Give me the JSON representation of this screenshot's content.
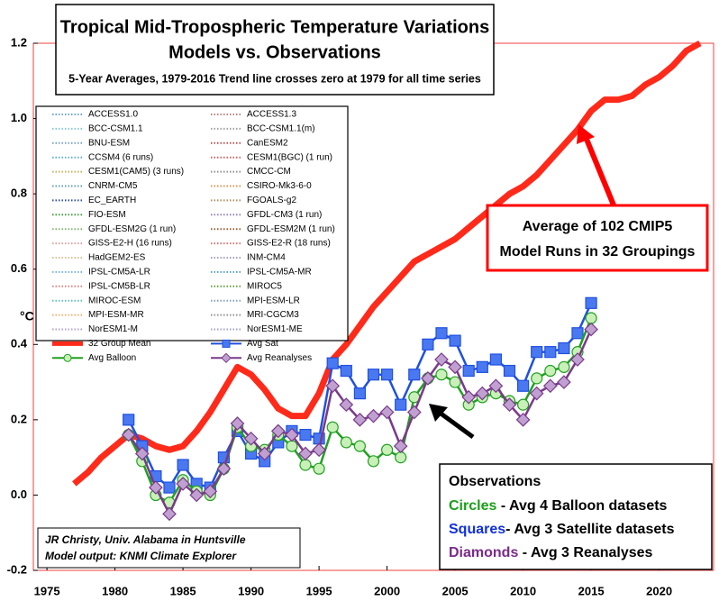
{
  "chart_data": {
    "type": "line",
    "title": [
      "Tropical Mid-Tropospheric Temperature Variations",
      "Models vs. Observations"
    ],
    "subtitle": "5-Year Averages, 1979-2016 Trend line crosses zero at 1979 for all time series",
    "ylabel": "°C",
    "xlim": [
      1974,
      2024
    ],
    "xticks": [
      1975,
      1980,
      1985,
      1990,
      1995,
      2000,
      2005,
      2010,
      2015,
      2020
    ],
    "ylim": [
      -0.2,
      1.2
    ],
    "yticks": [
      {
        "value": -0.2,
        "label": "-0.2"
      },
      {
        "value": 0,
        "label": "0.0"
      },
      {
        "value": 0.2,
        "label": "0.2"
      },
      {
        "value": 0.4,
        "label": "0.4"
      },
      {
        "value": 0.6,
        "label": "0.6"
      },
      {
        "value": 0.8,
        "label": "0.8"
      },
      {
        "value": 1.0,
        "label": "1.0"
      },
      {
        "value": 1.2,
        "label": "1.2"
      }
    ],
    "grid": false,
    "legend": "upper left",
    "legend_models": [
      {
        "name": "ACCESS1.0",
        "color": "#6fa0d8"
      },
      {
        "name": "BCC-CSM1.1",
        "color": "#8ac4e0"
      },
      {
        "name": "BNU-ESM",
        "color": "#7aa0c8"
      },
      {
        "name": "CCSM4 (6 runs)",
        "color": "#5ab0d0"
      },
      {
        "name": "CESM1(CAM5) (3 runs)",
        "color": "#c0b060"
      },
      {
        "name": "CNRM-CM5",
        "color": "#60a0b0"
      },
      {
        "name": "EC_EARTH",
        "color": "#3050a0"
      },
      {
        "name": "FIO-ESM",
        "color": "#40a040"
      },
      {
        "name": "GFDL-ESM2G (1 run)",
        "color": "#80b870"
      },
      {
        "name": "GISS-E2-H (16 runs)",
        "color": "#e0a0a0"
      },
      {
        "name": "HadGEM2-ES",
        "color": "#d8c090"
      },
      {
        "name": "IPSL-CM5A-LR",
        "color": "#70b0e0"
      },
      {
        "name": "IPSL-CM5B-LR",
        "color": "#e08080"
      },
      {
        "name": "MIROC-ESM",
        "color": "#60c0c0"
      },
      {
        "name": "MPI-ESM-MR",
        "color": "#f0b070"
      },
      {
        "name": "NorESM1-M",
        "color": "#b0a0d0"
      },
      {
        "name": "ACCESS1.3",
        "color": "#c08080"
      },
      {
        "name": "BCC-CSM1.1(m)",
        "color": "#a0a0a0"
      },
      {
        "name": "CanESM2",
        "color": "#c05050"
      },
      {
        "name": "CESM1(BGC) (1 run)",
        "color": "#d06060"
      },
      {
        "name": "CMCC-CM",
        "color": "#909090"
      },
      {
        "name": "CSIRO-Mk3-6-0",
        "color": "#e09050"
      },
      {
        "name": "FGOALS-g2",
        "color": "#b09060"
      },
      {
        "name": "GFDL-CM3 (1 run)",
        "color": "#9080c0"
      },
      {
        "name": "GFDL-ESM2M (1 run)",
        "color": "#a06030"
      },
      {
        "name": "GISS-E2-R (18 runs)",
        "color": "#e07070"
      },
      {
        "name": "INM-CM4",
        "color": "#a0a0c0"
      },
      {
        "name": "IPSL-CM5A-MR",
        "color": "#50a0d0"
      },
      {
        "name": "MIROC5",
        "color": "#60a040"
      },
      {
        "name": "MPI-ESM-LR",
        "color": "#80a0c0"
      },
      {
        "name": "MRI-CGCM3",
        "color": "#909090"
      },
      {
        "name": "NorESM1-ME",
        "color": "#a0a0d0"
      }
    ],
    "series": [
      {
        "name": "32 Group Mean",
        "color": "#ff2a1a",
        "marker": "none",
        "x": [
          1977,
          1978,
          1979,
          1980,
          1981,
          1982,
          1983,
          1984,
          1985,
          1986,
          1987,
          1988,
          1989,
          1990,
          1991,
          1992,
          1993,
          1994,
          1995,
          1996,
          1997,
          1998,
          1999,
          2000,
          2001,
          2002,
          2003,
          2004,
          2005,
          2006,
          2007,
          2008,
          2009,
          2010,
          2011,
          2012,
          2013,
          2014,
          2015,
          2016,
          2017,
          2018,
          2019,
          2020,
          2021,
          2022,
          2023
        ],
        "values": [
          0.03,
          0.06,
          0.1,
          0.13,
          0.16,
          0.15,
          0.13,
          0.12,
          0.13,
          0.17,
          0.22,
          0.28,
          0.34,
          0.32,
          0.28,
          0.23,
          0.21,
          0.21,
          0.27,
          0.36,
          0.4,
          0.45,
          0.5,
          0.54,
          0.58,
          0.62,
          0.64,
          0.66,
          0.68,
          0.71,
          0.74,
          0.77,
          0.8,
          0.82,
          0.85,
          0.89,
          0.93,
          0.97,
          1.02,
          1.05,
          1.05,
          1.06,
          1.09,
          1.11,
          1.14,
          1.18,
          1.2
        ]
      },
      {
        "name": "Avg Sat",
        "color": "#2050e0",
        "marker": "square",
        "x": [
          1981,
          1982,
          1983,
          1984,
          1985,
          1986,
          1987,
          1988,
          1989,
          1990,
          1991,
          1992,
          1993,
          1994,
          1995,
          1996,
          1997,
          1998,
          1999,
          2000,
          2001,
          2002,
          2003,
          2004,
          2005,
          2006,
          2007,
          2008,
          2009,
          2010,
          2011,
          2012,
          2013,
          2014,
          2015
        ],
        "values": [
          0.2,
          0.13,
          0.05,
          0.02,
          0.08,
          0.03,
          0.02,
          0.1,
          0.17,
          0.11,
          0.09,
          0.14,
          0.17,
          0.16,
          0.15,
          0.35,
          0.33,
          0.27,
          0.32,
          0.32,
          0.24,
          0.32,
          0.4,
          0.43,
          0.41,
          0.33,
          0.34,
          0.36,
          0.33,
          0.29,
          0.38,
          0.38,
          0.39,
          0.43,
          0.51
        ]
      },
      {
        "name": "Avg Balloon",
        "color": "#20a020",
        "marker": "circle",
        "x": [
          1981,
          1982,
          1983,
          1984,
          1985,
          1986,
          1987,
          1988,
          1989,
          1990,
          1991,
          1992,
          1993,
          1994,
          1995,
          1996,
          1997,
          1998,
          1999,
          2000,
          2001,
          2002,
          2003,
          2004,
          2005,
          2006,
          2007,
          2008,
          2009,
          2010,
          2011,
          2012,
          2013,
          2014,
          2015
        ],
        "values": [
          0.16,
          0.09,
          0.0,
          -0.02,
          0.04,
          0.01,
          0.0,
          0.07,
          0.18,
          0.13,
          0.12,
          0.16,
          0.13,
          0.08,
          0.07,
          0.18,
          0.14,
          0.13,
          0.09,
          0.12,
          0.1,
          0.26,
          0.31,
          0.32,
          0.3,
          0.24,
          0.26,
          0.27,
          0.25,
          0.24,
          0.31,
          0.33,
          0.34,
          0.38,
          0.47
        ]
      },
      {
        "name": "Avg Reanalyses",
        "color": "#7a3a8a",
        "marker": "diamond",
        "x": [
          1981,
          1982,
          1983,
          1984,
          1985,
          1986,
          1987,
          1988,
          1989,
          1990,
          1991,
          1992,
          1993,
          1994,
          1995,
          1996,
          1997,
          1998,
          1999,
          2000,
          2001,
          2002,
          2003,
          2004,
          2005,
          2006,
          2007,
          2008,
          2009,
          2010,
          2011,
          2012,
          2013,
          2014,
          2015
        ],
        "values": [
          0.16,
          0.11,
          0.02,
          -0.05,
          0.03,
          0.0,
          0.01,
          0.07,
          0.19,
          0.15,
          0.11,
          0.17,
          0.16,
          0.11,
          0.12,
          0.29,
          0.24,
          0.2,
          0.21,
          0.22,
          0.13,
          0.22,
          0.31,
          0.36,
          0.34,
          0.26,
          0.27,
          0.29,
          0.24,
          0.2,
          0.27,
          0.29,
          0.3,
          0.36,
          0.44
        ]
      }
    ],
    "annotations": {
      "model_average": [
        "Average of 102 CMIP5",
        "Model Runs in 32 Groupings"
      ],
      "observations": {
        "heading": "Observations",
        "items": [
          {
            "key": "Circles",
            "text": " - Avg 4 Balloon datasets"
          },
          {
            "key": "Squares",
            "text": "- Avg 3 Satellite datasets"
          },
          {
            "key": "Diamonds",
            "text": " - Avg 3 Reanalyses"
          }
        ]
      },
      "credit": [
        "JR Christy, Univ. Alabama in Huntsville",
        "Model output: KNMI Climate Explorer"
      ]
    }
  }
}
